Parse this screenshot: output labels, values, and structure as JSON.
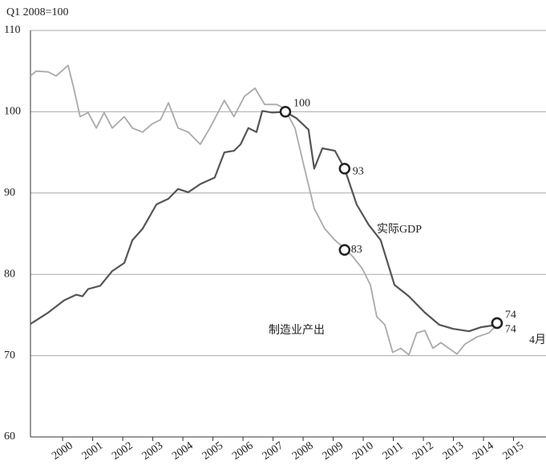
{
  "chart_data": {
    "type": "line",
    "ylabel": "Q1 2008=100",
    "xlim": [
      1998.93,
      2016.08
    ],
    "xticks": [
      2000,
      2001,
      2002,
      2003,
      2004,
      2005,
      2006,
      2007,
      2008,
      2009,
      2010,
      2011,
      2012,
      2013,
      2014,
      2015
    ],
    "ylim": [
      60,
      110
    ],
    "yticks": [
      60,
      70,
      80,
      90,
      100,
      110
    ],
    "grid": true,
    "series": [
      {
        "name": "实际GDP",
        "color": "#555555",
        "x": [
          1998.93,
          1999.52,
          2000.05,
          2000.45,
          2000.66,
          2000.85,
          2001.25,
          2001.65,
          2002.05,
          2002.32,
          2002.66,
          2003.12,
          2003.52,
          2003.84,
          2004.18,
          2004.58,
          2005.06,
          2005.38,
          2005.7,
          2005.92,
          2006.18,
          2006.45,
          2006.64,
          2006.98,
          2007.41,
          2007.78,
          2008.18,
          2008.37,
          2008.64,
          2009.06,
          2009.38,
          2009.78,
          2010.18,
          2010.58,
          2011.04,
          2011.52,
          2012.05,
          2012.53,
          2012.98,
          2013.52,
          2013.92,
          2014.45
        ],
        "values": [
          73.9,
          75.3,
          76.8,
          77.5,
          77.3,
          78.2,
          78.6,
          80.4,
          81.4,
          84.2,
          85.6,
          88.6,
          89.3,
          90.5,
          90.1,
          91.1,
          91.9,
          95.0,
          95.2,
          96.0,
          98.0,
          97.5,
          100.1,
          99.9,
          100.0,
          99.2,
          97.8,
          93.0,
          95.5,
          95.2,
          93.0,
          88.6,
          86.1,
          84.2,
          78.7,
          77.3,
          75.3,
          73.8,
          73.3,
          73.0,
          73.5,
          73.8
        ]
      },
      {
        "name": "制造业产出",
        "color": "#aaaaaa",
        "x": [
          1998.93,
          1999.12,
          1999.52,
          1999.78,
          2000.18,
          2000.37,
          2000.58,
          2000.85,
          2001.12,
          2001.38,
          2001.65,
          2002.05,
          2002.32,
          2002.66,
          2002.98,
          2003.25,
          2003.52,
          2003.84,
          2004.18,
          2004.58,
          2004.9,
          2005.38,
          2005.7,
          2006.05,
          2006.4,
          2006.72,
          2007.12,
          2007.38,
          2007.73,
          2008.05,
          2008.37,
          2008.72,
          2009.06,
          2009.38,
          2009.65,
          2009.97,
          2010.24,
          2010.45,
          2010.72,
          2010.98,
          2011.25,
          2011.52,
          2011.78,
          2012.05,
          2012.32,
          2012.58,
          2012.85,
          2013.12,
          2013.38,
          2013.78,
          2014.18,
          2014.45
        ],
        "values": [
          104.4,
          105.0,
          104.9,
          104.4,
          105.7,
          102.9,
          99.4,
          99.9,
          98.0,
          99.9,
          98.0,
          99.4,
          98.0,
          97.5,
          98.5,
          99.0,
          101.1,
          98.0,
          97.5,
          96.0,
          98.0,
          101.4,
          99.4,
          101.9,
          102.9,
          100.9,
          100.9,
          100.4,
          98.0,
          93.0,
          88.1,
          85.6,
          84.2,
          83.2,
          82.2,
          80.7,
          78.7,
          74.8,
          73.8,
          70.4,
          70.9,
          70.1,
          72.8,
          73.1,
          70.9,
          71.6,
          70.9,
          70.2,
          71.4,
          72.3,
          72.8,
          73.8
        ]
      }
    ],
    "annotations": [
      {
        "x": 2007.41,
        "value": 100
      },
      {
        "x": 2009.38,
        "value": 93
      },
      {
        "x": 2009.38,
        "value": 83
      },
      {
        "x": 2014.45,
        "value": 74
      },
      {
        "x": 2014.45,
        "value": 74
      }
    ],
    "note": "4月"
  }
}
